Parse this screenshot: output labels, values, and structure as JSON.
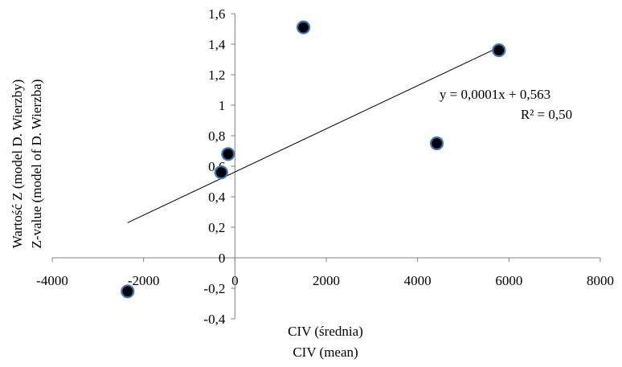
{
  "chart_data": {
    "type": "scatter",
    "xlabel": [
      "CIV (średnia)",
      "CIV (mean)"
    ],
    "ylabel": [
      "Wartość Z (model D. Wierzby)",
      "Z-value (model of D. Wierzba)"
    ],
    "xlim": [
      -4000,
      8000
    ],
    "ylim": [
      -0.4,
      1.6
    ],
    "x_ticks": [
      -4000,
      -2000,
      0,
      2000,
      4000,
      6000,
      8000
    ],
    "x_tick_labels": [
      "-4000",
      "-2000",
      "0",
      "2000",
      "4000",
      "6000",
      "8000"
    ],
    "y_ticks": [
      -0.4,
      -0.2,
      0,
      0.2,
      0.4,
      0.6,
      0.8,
      1.0,
      1.2,
      1.4,
      1.6
    ],
    "y_tick_labels": [
      "-0,4",
      "-0,2",
      "0",
      "0,2",
      "0,4",
      "0,6",
      "0,8",
      "1",
      "1,2",
      "1,4",
      "1,6"
    ],
    "grid": false,
    "series": [
      {
        "points": [
          {
            "x": -2350,
            "y": -0.22
          },
          {
            "x": -300,
            "y": 0.56
          },
          {
            "x": -150,
            "y": 0.68
          },
          {
            "x": 1500,
            "y": 1.51
          },
          {
            "x": 4420,
            "y": 0.75
          },
          {
            "x": 5780,
            "y": 1.36
          }
        ],
        "marker_fill": "#000000",
        "marker_stroke": "#3a78c3"
      }
    ],
    "trendline": {
      "type": "linear",
      "x_range": [
        -2350,
        5780
      ],
      "y_range": [
        0.23,
        1.38
      ],
      "equation": "y = 0,0001x + 0,563",
      "r_squared": "R² = 0,50",
      "color": "#000000"
    }
  }
}
